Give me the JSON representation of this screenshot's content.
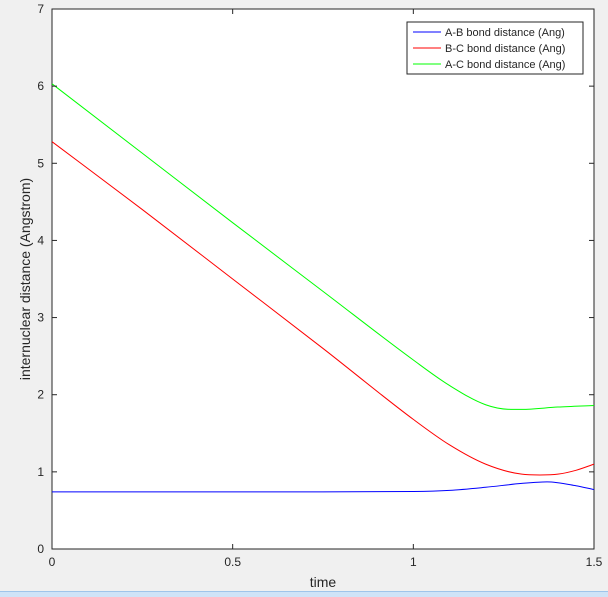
{
  "chart_data": {
    "type": "line",
    "title": "",
    "xlabel": "time",
    "ylabel": "internuclear distance (Angstrom)",
    "xlim": [
      0,
      1.5
    ],
    "ylim": [
      0,
      7
    ],
    "xticks": [
      0,
      0.5,
      1,
      1.5
    ],
    "xtick_labels": [
      "0",
      "0.5",
      "1",
      "1.5"
    ],
    "yticks": [
      0,
      1,
      2,
      3,
      4,
      5,
      6,
      7
    ],
    "ytick_labels": [
      "0",
      "1",
      "2",
      "3",
      "4",
      "5",
      "6",
      "7"
    ],
    "grid": false,
    "legend_position": "top-right",
    "series": [
      {
        "name": "A-B bond distance (Ang)",
        "color": "#0000ff",
        "x": [
          0,
          0.25,
          0.5,
          0.75,
          1.0,
          1.1,
          1.2,
          1.3,
          1.37,
          1.45,
          1.5
        ],
        "y": [
          0.74,
          0.74,
          0.74,
          0.74,
          0.745,
          0.76,
          0.8,
          0.85,
          0.87,
          0.82,
          0.77
        ]
      },
      {
        "name": "B-C bond distance (Ang)",
        "color": "#ff0000",
        "x": [
          0,
          0.25,
          0.5,
          0.75,
          1.0,
          1.1,
          1.2,
          1.3,
          1.35,
          1.4,
          1.45,
          1.5
        ],
        "y": [
          5.28,
          4.4,
          3.5,
          2.6,
          1.68,
          1.35,
          1.1,
          0.97,
          0.96,
          0.97,
          1.02,
          1.1
        ]
      },
      {
        "name": "A-C bond distance (Ang)",
        "color": "#00ff00",
        "x": [
          0,
          0.25,
          0.5,
          0.75,
          1.0,
          1.1,
          1.2,
          1.27,
          1.3,
          1.4,
          1.5
        ],
        "y": [
          6.03,
          5.13,
          4.23,
          3.34,
          2.45,
          2.12,
          1.87,
          1.81,
          1.81,
          1.84,
          1.86
        ]
      }
    ]
  }
}
